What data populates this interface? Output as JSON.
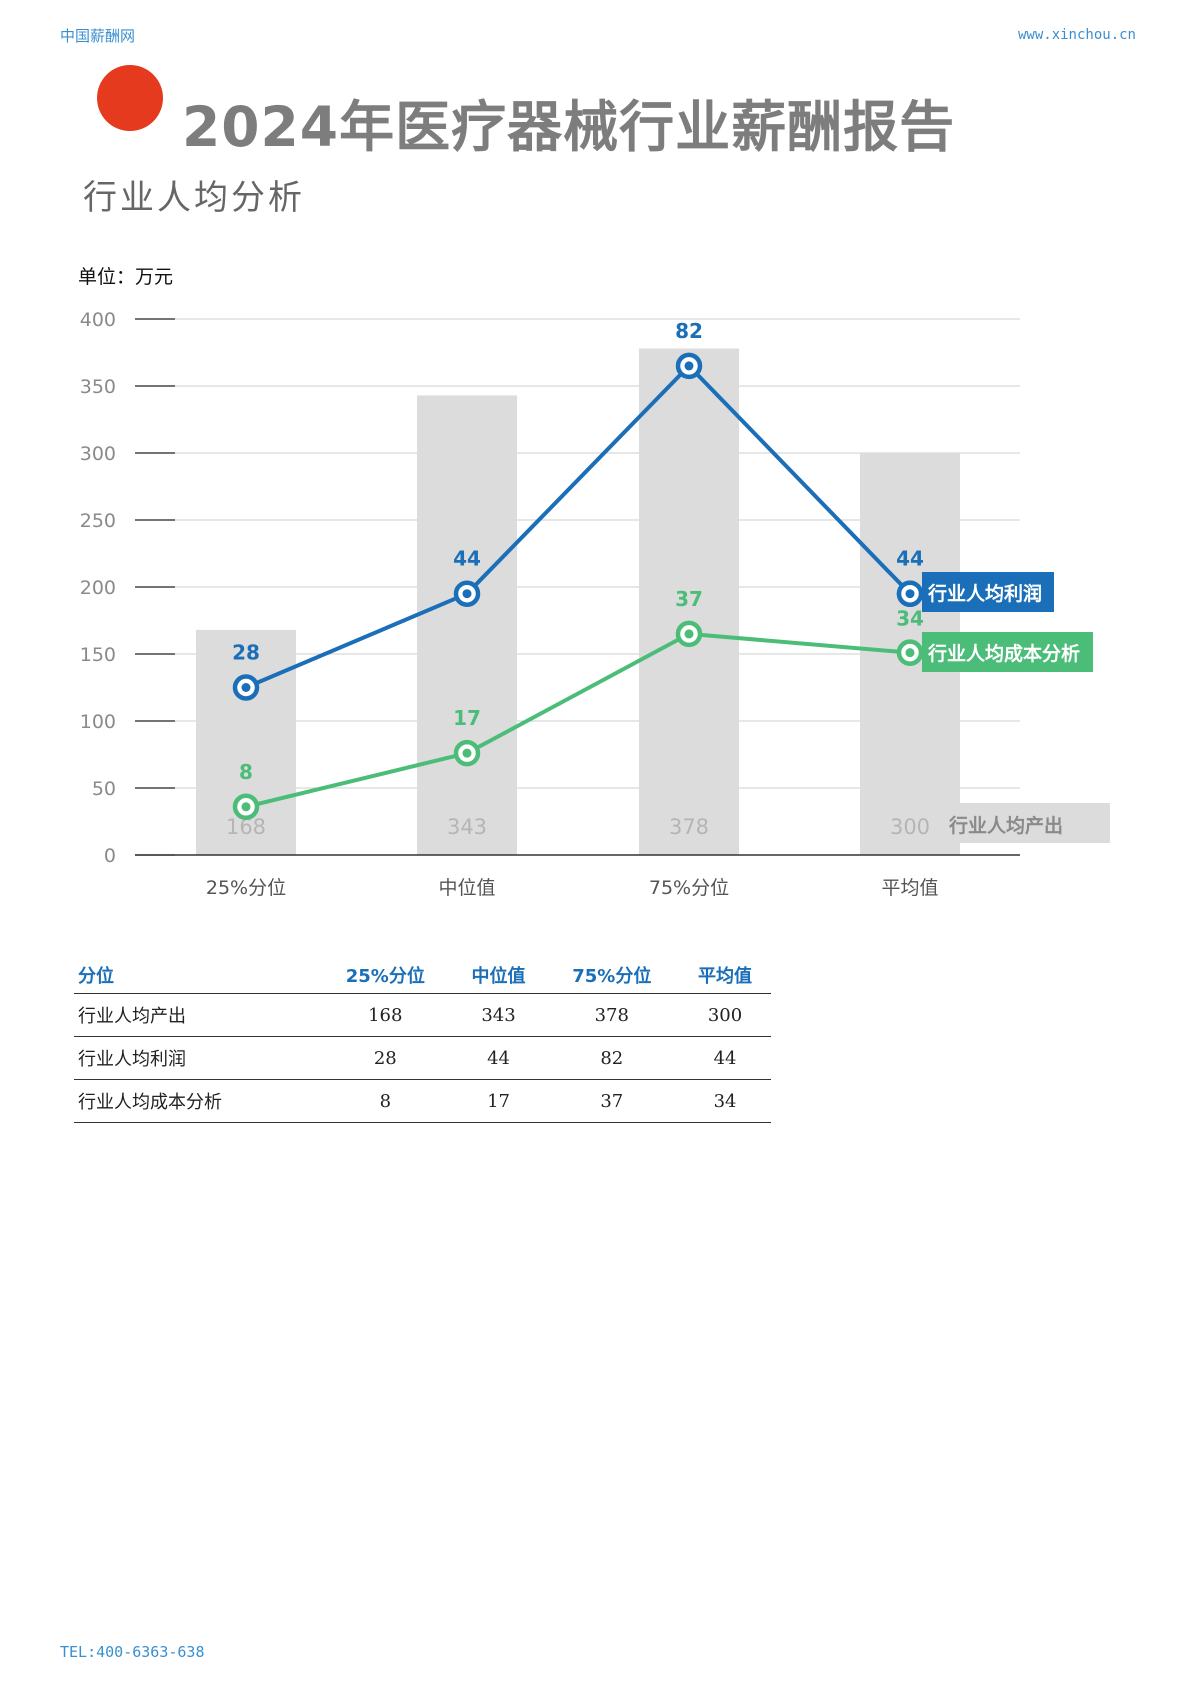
{
  "header": {
    "left": "中国薪酬网",
    "right": "www.xinchou.cn"
  },
  "title": "2024年医疗器械行业薪酬报告",
  "subtitle": "行业人均分析",
  "chart_data": {
    "type": "bar",
    "unit_label": "单位：万元",
    "categories": [
      "25%分位",
      "中位值",
      "75%分位",
      "平均值"
    ],
    "ylim": [
      0,
      400
    ],
    "yticks": [
      0,
      50,
      100,
      150,
      200,
      250,
      300,
      350,
      400
    ],
    "grid": true,
    "bar_series": {
      "name": "行业人均产出",
      "values": [
        168,
        343,
        378,
        300
      ],
      "color": "#dcdcdc",
      "label_color": "#b5b5b5"
    },
    "line_series": [
      {
        "name": "行业人均利润",
        "labels": [
          28,
          44,
          82,
          44
        ],
        "plot_y": [
          125,
          195,
          365,
          195
        ],
        "color": "#1a6fb8"
      },
      {
        "name": "行业人均成本分析",
        "labels": [
          8,
          17,
          37,
          34
        ],
        "plot_y": [
          36,
          76,
          165,
          151
        ],
        "color": "#4cbd78"
      }
    ]
  },
  "table": {
    "headers": [
      "分位",
      "25%分位",
      "中位值",
      "75%分位",
      "平均值"
    ],
    "rows": [
      [
        "行业人均产出",
        "168",
        "343",
        "378",
        "300"
      ],
      [
        "行业人均利润",
        "28",
        "44",
        "82",
        "44"
      ],
      [
        "行业人均成本分析",
        "8",
        "17",
        "37",
        "34"
      ]
    ]
  },
  "footer": "TEL:400-6363-638"
}
